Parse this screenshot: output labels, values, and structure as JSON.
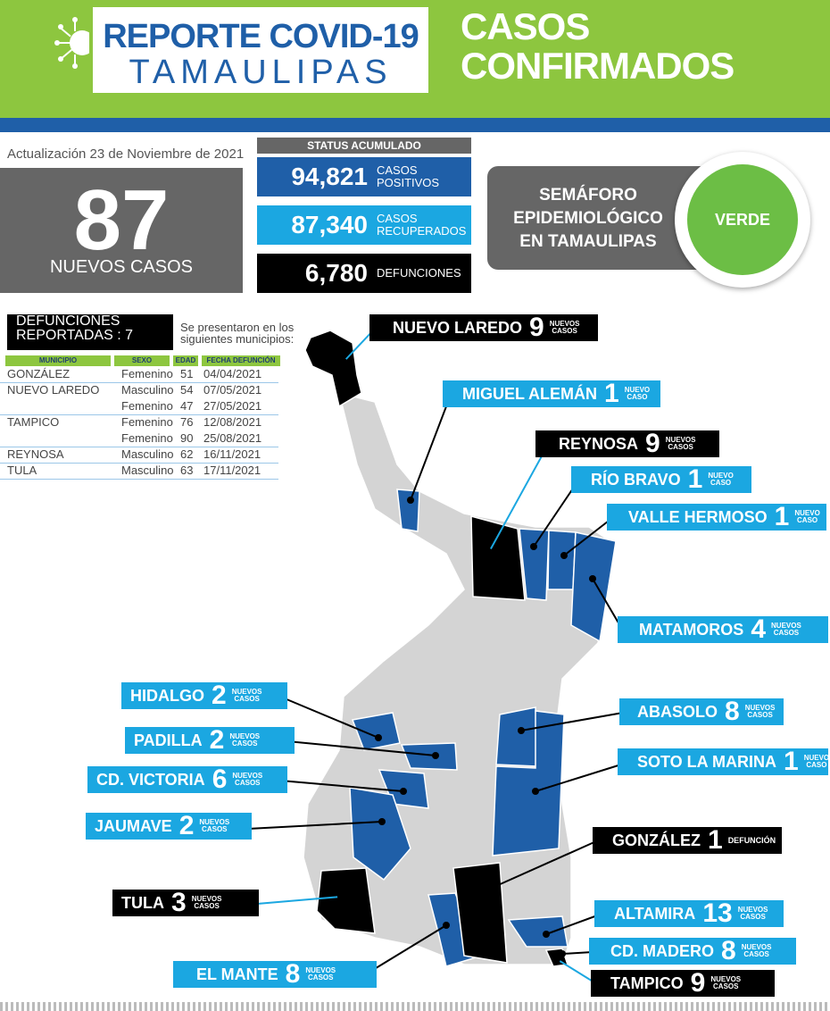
{
  "header": {
    "title_line1": "REPORTE COVID-19",
    "title_line2": "TAMAULIPAS",
    "section_line1": "CASOS",
    "section_line2": "CONFIRMADOS"
  },
  "update": {
    "text": "Actualización 23 de Noviembre de 2021",
    "new_cases": "87",
    "new_cases_label": "NUEVOS CASOS"
  },
  "status": {
    "header": "STATUS ACUMULADO",
    "positivos_value": "94,821",
    "positivos_l1": "CASOS",
    "positivos_l2": "POSITIVOS",
    "recuperados_value": "87,340",
    "recuperados_l1": "CASOS",
    "recuperados_l2": "RECUPERADOS",
    "defunciones_value": "6,780",
    "defunciones_label": "DEFUNCIONES"
  },
  "semaforo": {
    "line1": "SEMÁFORO",
    "line2": "EPIDEMIOLÓGICO",
    "line3": "EN TAMAULIPAS",
    "status": "VERDE",
    "status_color": "#6cbe45"
  },
  "defunciones": {
    "title_l1": "DEFUNCIONES",
    "title_l2": "REPORTADAS : 7",
    "note_l1": "Se presentaron en los",
    "note_l2": "siguientes municipios:",
    "columns": [
      "MUNICIPIO",
      "SEXO",
      "EDAD",
      "FECHA DEFUNCIÓN"
    ],
    "rows": [
      {
        "municipio": "GONZÁLEZ",
        "sexo": "Femenino",
        "edad": "51",
        "fecha": "04/04/2021"
      },
      {
        "municipio": "NUEVO LAREDO",
        "sexo": "Masculino",
        "edad": "54",
        "fecha": "07/05/2021"
      },
      {
        "municipio": "",
        "sexo": "Femenino",
        "edad": "47",
        "fecha": "27/05/2021"
      },
      {
        "municipio": "TAMPICO",
        "sexo": "Femenino",
        "edad": "76",
        "fecha": "12/08/2021"
      },
      {
        "municipio": "",
        "sexo": "Femenino",
        "edad": "90",
        "fecha": "25/08/2021"
      },
      {
        "municipio": "REYNOSA",
        "sexo": "Masculino",
        "edad": "62",
        "fecha": "16/11/2021"
      },
      {
        "municipio": "TULA",
        "sexo": "Masculino",
        "edad": "63",
        "fecha": "17/11/2021"
      }
    ]
  },
  "legend_colors": {
    "cases": "#1f5fa8",
    "deaths": "#000000",
    "none": "#d4d4d4"
  },
  "municipios": {
    "nuevo_laredo": {
      "name": "NUEVO LAREDO",
      "num": "9",
      "tag1": "NUEVOS",
      "tag2": "CASOS"
    },
    "miguel_aleman": {
      "name": "MIGUEL ALEMÁN",
      "num": "1",
      "tag1": "NUEVO",
      "tag2": "CASO"
    },
    "reynosa": {
      "name": "REYNOSA",
      "num": "9",
      "tag1": "NUEVOS",
      "tag2": "CASOS"
    },
    "rio_bravo": {
      "name": "RÍO BRAVO",
      "num": "1",
      "tag1": "NUEVO",
      "tag2": "CASO"
    },
    "valle_hermoso": {
      "name": "VALLE HERMOSO",
      "num": "1",
      "tag1": "NUEVO",
      "tag2": "CASO"
    },
    "matamoros": {
      "name": "MATAMOROS",
      "num": "4",
      "tag1": "NUEVOS",
      "tag2": "CASOS"
    },
    "hidalgo": {
      "name": "HIDALGO",
      "num": "2",
      "tag1": "NUEVOS",
      "tag2": "CASOS"
    },
    "padilla": {
      "name": "PADILLA",
      "num": "2",
      "tag1": "NUEVOS",
      "tag2": "CASOS"
    },
    "cd_victoria": {
      "name": "CD. VICTORIA",
      "num": "6",
      "tag1": "NUEVOS",
      "tag2": "CASOS"
    },
    "jaumave": {
      "name": "JAUMAVE",
      "num": "2",
      "tag1": "NUEVOS",
      "tag2": "CASOS"
    },
    "tula": {
      "name": "TULA",
      "num": "3",
      "tag1": "NUEVOS",
      "tag2": "CASOS"
    },
    "el_mante": {
      "name": "EL MANTE",
      "num": "8",
      "tag1": "NUEVOS",
      "tag2": "CASOS"
    },
    "abasolo": {
      "name": "ABASOLO",
      "num": "8",
      "tag1": "NUEVOS",
      "tag2": "CASOS"
    },
    "soto_la_marina": {
      "name": "SOTO LA MARINA",
      "num": "1",
      "tag1": "NUEVO",
      "tag2": "CASO"
    },
    "gonzalez": {
      "name": "GONZÁLEZ",
      "num": "1",
      "tag1": "DEFUNCIÓN",
      "tag2": ""
    },
    "altamira": {
      "name": "ALTAMIRA",
      "num": "13",
      "tag1": "NUEVOS",
      "tag2": "CASOS"
    },
    "cd_madero": {
      "name": "CD. MADERO",
      "num": "8",
      "tag1": "NUEVOS",
      "tag2": "CASOS"
    },
    "tampico": {
      "name": "TAMPICO",
      "num": "9",
      "tag1": "NUEVOS",
      "tag2": "CASOS"
    }
  }
}
